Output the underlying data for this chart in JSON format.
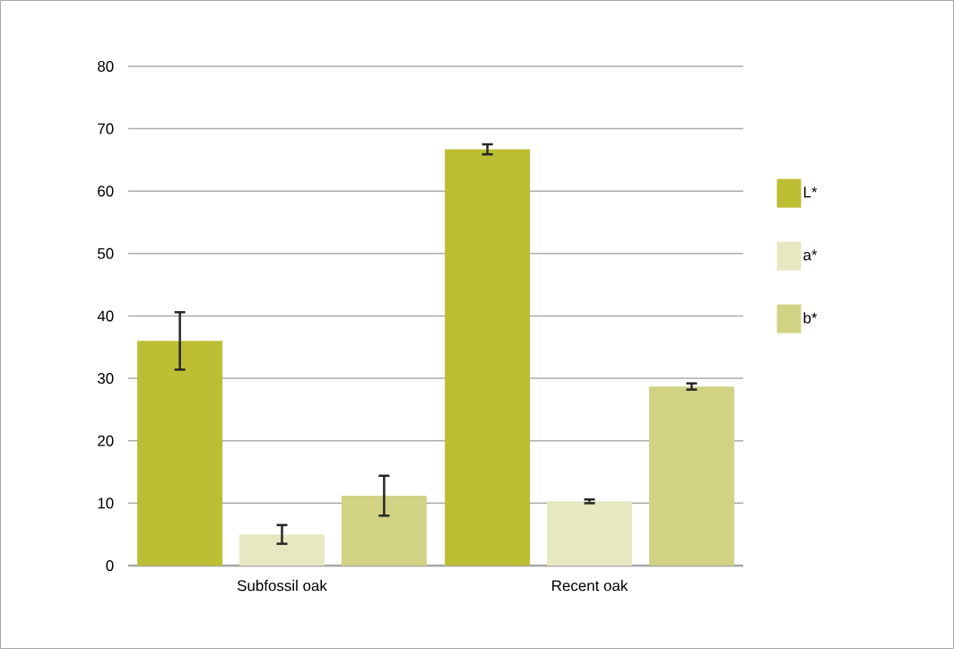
{
  "chart_data": {
    "type": "bar",
    "categories": [
      "Subfossil oak",
      "Recent oak"
    ],
    "series": [
      {
        "name": "L*",
        "color": "#bcbe33",
        "values": [
          36,
          66.7
        ],
        "errors": [
          4.6,
          0.8
        ]
      },
      {
        "name": "a*",
        "color": "#e5e8c0",
        "values": [
          5,
          10.3
        ],
        "errors": [
          1.5,
          0.3
        ]
      },
      {
        "name": "b*",
        "color": "#d1d284",
        "values": [
          11.2,
          28.7
        ],
        "errors": [
          3.2,
          0.5
        ]
      }
    ],
    "ylim": [
      0,
      80
    ],
    "yticks": [
      0,
      10,
      20,
      30,
      40,
      50,
      60,
      70,
      80
    ],
    "grid": "y",
    "legend": "right"
  }
}
